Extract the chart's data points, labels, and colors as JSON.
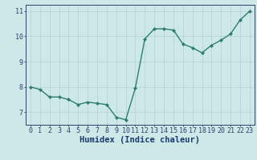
{
  "x": [
    0,
    1,
    2,
    3,
    4,
    5,
    6,
    7,
    8,
    9,
    10,
    11,
    12,
    13,
    14,
    15,
    16,
    17,
    18,
    19,
    20,
    21,
    22,
    23
  ],
  "y": [
    8.0,
    7.9,
    7.6,
    7.6,
    7.5,
    7.3,
    7.4,
    7.35,
    7.3,
    6.8,
    6.7,
    7.95,
    9.9,
    10.3,
    10.3,
    10.25,
    9.7,
    9.55,
    9.35,
    9.65,
    9.85,
    10.1,
    10.65,
    11.0
  ],
  "xlim": [
    -0.5,
    23.5
  ],
  "ylim": [
    6.5,
    11.25
  ],
  "yticks": [
    7,
    8,
    9,
    10,
    11
  ],
  "xticks": [
    0,
    1,
    2,
    3,
    4,
    5,
    6,
    7,
    8,
    9,
    10,
    11,
    12,
    13,
    14,
    15,
    16,
    17,
    18,
    19,
    20,
    21,
    22,
    23
  ],
  "xlabel": "Humidex (Indice chaleur)",
  "line_color": "#2e7d6e",
  "marker": "D",
  "marker_size": 2.0,
  "bg_color": "#cce9e8",
  "grid_color": "#b8d4d3",
  "tick_label_color": "#1a3a6e",
  "axis_color": "#2e4070",
  "xlabel_color": "#1a3a6e",
  "line_width": 1.0,
  "font_family": "monospace",
  "xlabel_fontsize": 7.5,
  "tick_fontsize": 6.0
}
